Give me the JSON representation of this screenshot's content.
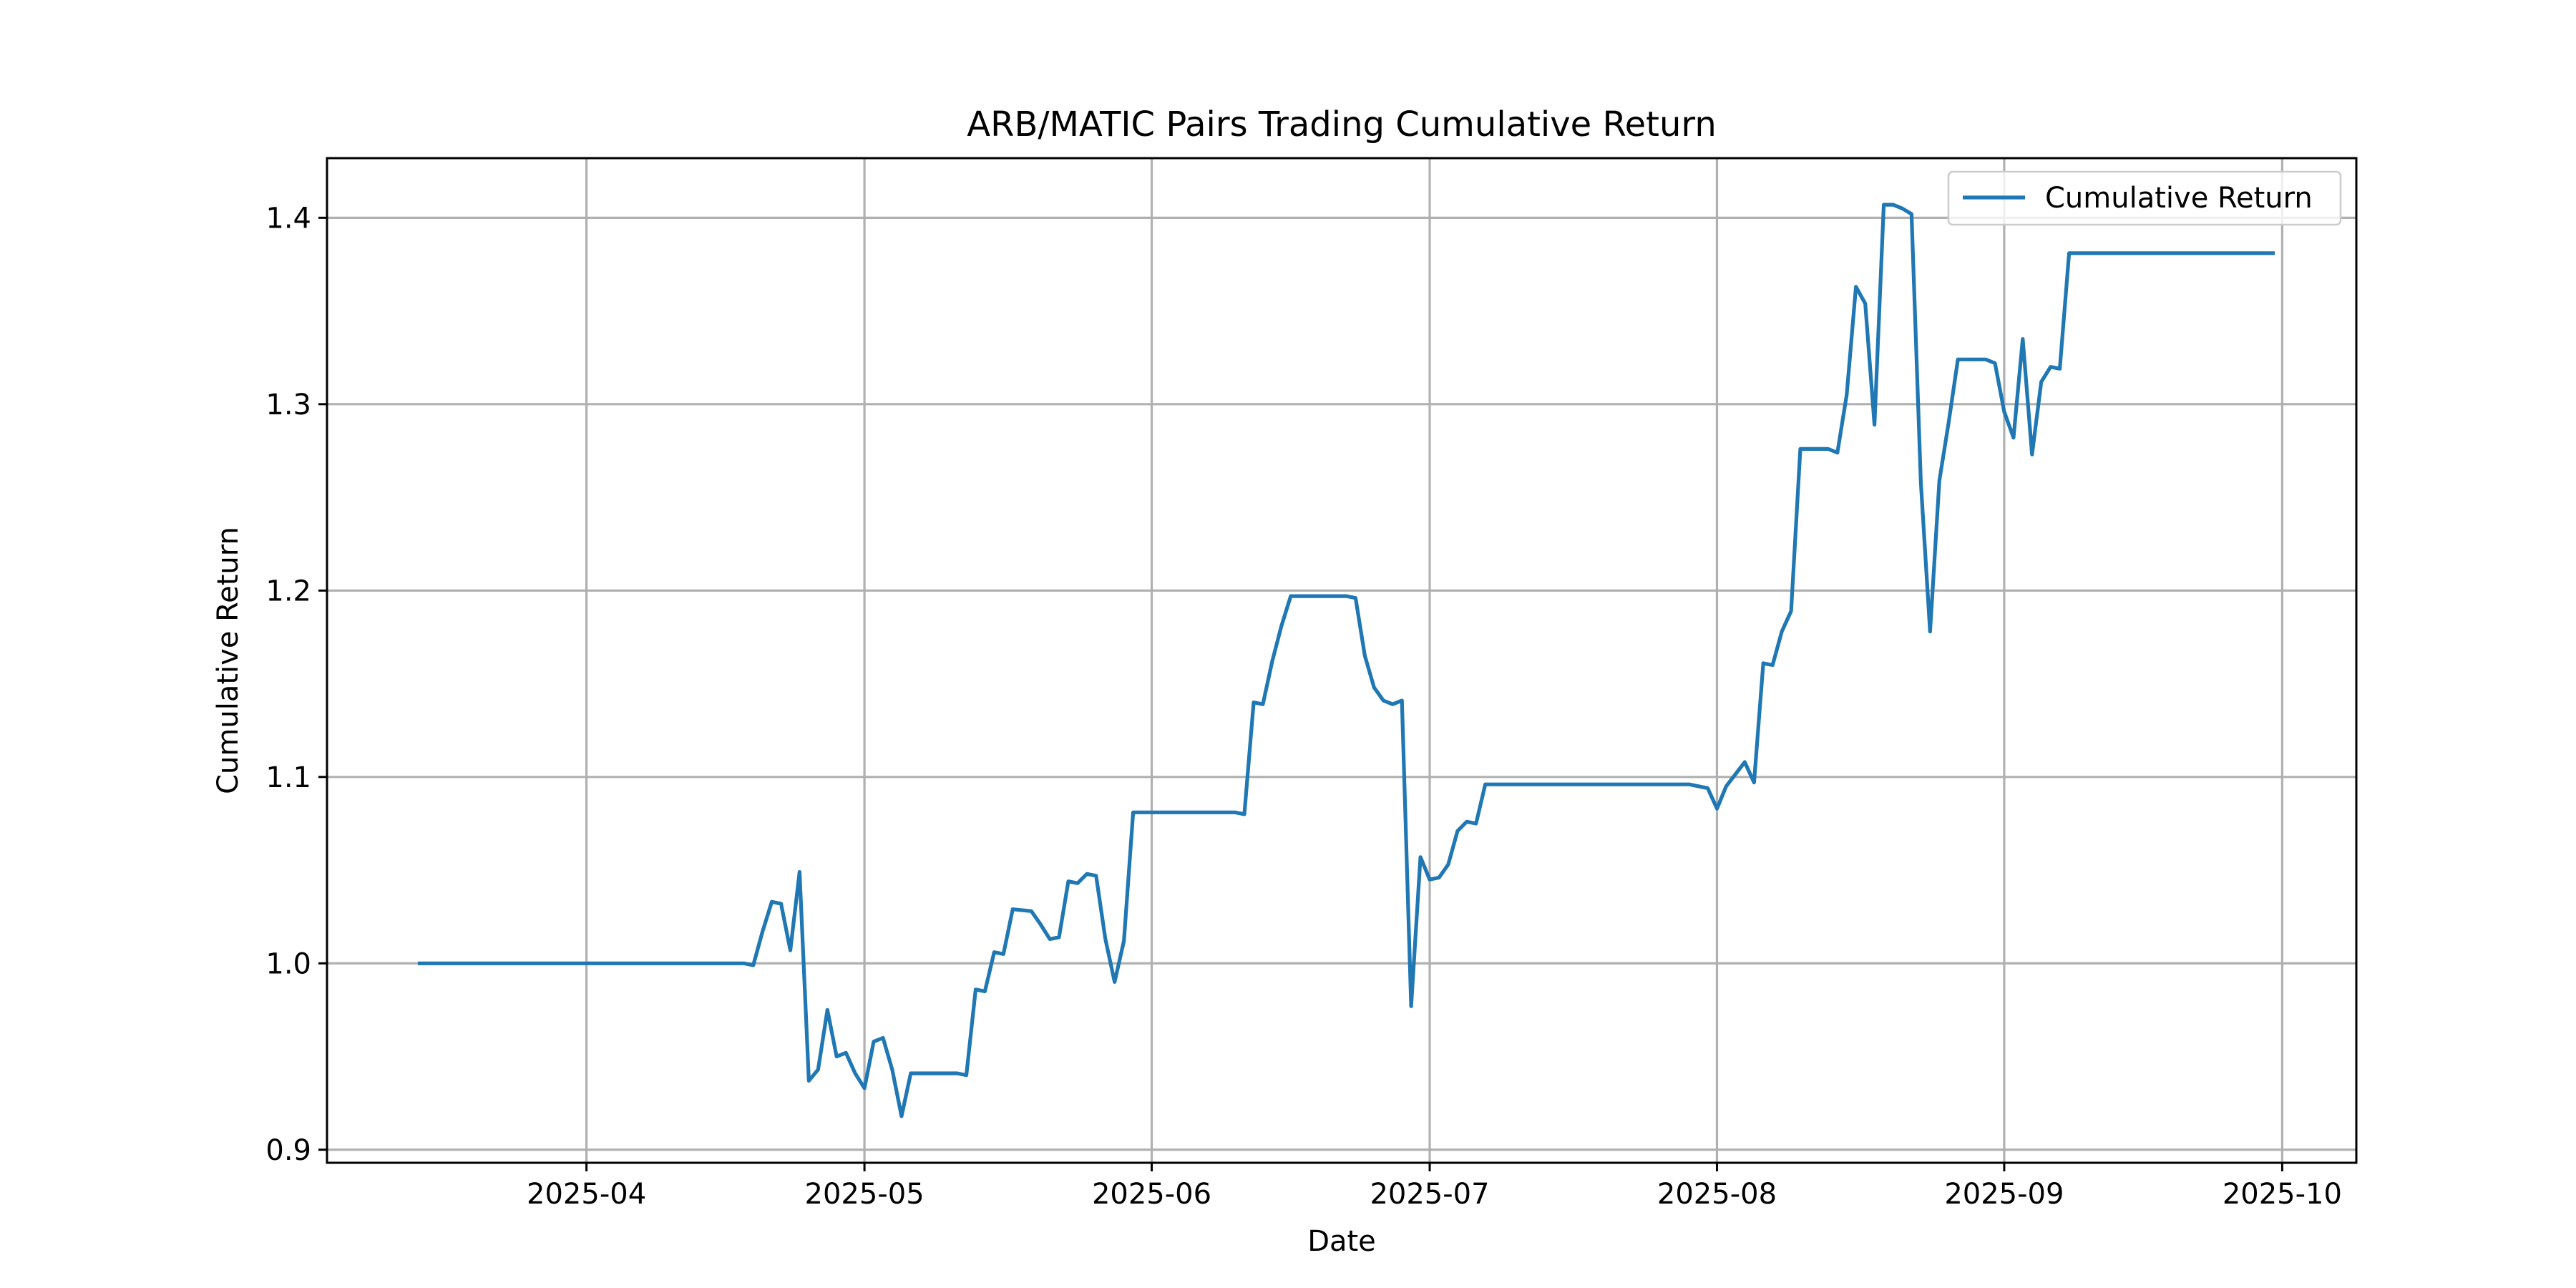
{
  "chart_data": {
    "type": "line",
    "title": "ARB/MATIC Pairs Trading Cumulative Return",
    "xlabel": "Date",
    "ylabel": "Cumulative Return",
    "x_is_date": true,
    "xlim": [
      "2025-03-04",
      "2025-10-09"
    ],
    "ylim": [
      0.893,
      1.432
    ],
    "x_ticks": [
      {
        "value": "2025-04-01",
        "label": "2025-04"
      },
      {
        "value": "2025-05-01",
        "label": "2025-05"
      },
      {
        "value": "2025-06-01",
        "label": "2025-06"
      },
      {
        "value": "2025-07-01",
        "label": "2025-07"
      },
      {
        "value": "2025-08-01",
        "label": "2025-08"
      },
      {
        "value": "2025-09-01",
        "label": "2025-09"
      },
      {
        "value": "2025-10-01",
        "label": "2025-10"
      }
    ],
    "y_ticks": [
      {
        "value": 0.9,
        "label": "0.9"
      },
      {
        "value": 1.0,
        "label": "1.0"
      },
      {
        "value": 1.1,
        "label": "1.1"
      },
      {
        "value": 1.2,
        "label": "1.2"
      },
      {
        "value": 1.3,
        "label": "1.3"
      },
      {
        "value": 1.4,
        "label": "1.4"
      }
    ],
    "grid": true,
    "legend": {
      "position": "upper right",
      "entries": [
        "Cumulative Return"
      ]
    },
    "series": [
      {
        "name": "Cumulative Return",
        "color": "#1f77b4",
        "x": [
          "2025-03-14",
          "2025-04-18",
          "2025-04-19",
          "2025-04-20",
          "2025-04-21",
          "2025-04-22",
          "2025-04-23",
          "2025-04-24",
          "2025-04-25",
          "2025-04-26",
          "2025-04-27",
          "2025-04-28",
          "2025-04-29",
          "2025-04-30",
          "2025-05-01",
          "2025-05-02",
          "2025-05-03",
          "2025-05-04",
          "2025-05-05",
          "2025-05-06",
          "2025-05-07",
          "2025-05-11",
          "2025-05-12",
          "2025-05-13",
          "2025-05-14",
          "2025-05-15",
          "2025-05-16",
          "2025-05-17",
          "2025-05-19",
          "2025-05-20",
          "2025-05-21",
          "2025-05-22",
          "2025-05-23",
          "2025-05-24",
          "2025-05-25",
          "2025-05-26",
          "2025-05-27",
          "2025-05-28",
          "2025-05-29",
          "2025-05-30",
          "2025-05-31",
          "2025-06-10",
          "2025-06-11",
          "2025-06-12",
          "2025-06-13",
          "2025-06-14",
          "2025-06-15",
          "2025-06-16",
          "2025-06-22",
          "2025-06-23",
          "2025-06-24",
          "2025-06-25",
          "2025-06-26",
          "2025-06-27",
          "2025-06-28",
          "2025-06-29",
          "2025-06-30",
          "2025-07-01",
          "2025-07-02",
          "2025-07-03",
          "2025-07-04",
          "2025-07-05",
          "2025-07-06",
          "2025-07-07",
          "2025-07-08",
          "2025-07-29",
          "2025-07-30",
          "2025-07-31",
          "2025-08-01",
          "2025-08-02",
          "2025-08-04",
          "2025-08-05",
          "2025-08-06",
          "2025-08-07",
          "2025-08-08",
          "2025-08-09",
          "2025-08-10",
          "2025-08-13",
          "2025-08-14",
          "2025-08-15",
          "2025-08-16",
          "2025-08-17",
          "2025-08-18",
          "2025-08-19",
          "2025-08-20",
          "2025-08-21",
          "2025-08-22",
          "2025-08-23",
          "2025-08-24",
          "2025-08-25",
          "2025-08-26",
          "2025-08-27",
          "2025-08-28",
          "2025-08-30",
          "2025-08-31",
          "2025-09-01",
          "2025-09-02",
          "2025-09-03",
          "2025-09-04",
          "2025-09-05",
          "2025-09-06",
          "2025-09-07",
          "2025-09-08",
          "2025-09-09",
          "2025-09-30"
        ],
        "y": [
          1.0,
          1.0,
          0.999,
          1.017,
          1.033,
          1.032,
          1.007,
          1.049,
          0.937,
          0.943,
          0.975,
          0.95,
          0.952,
          0.941,
          0.933,
          0.958,
          0.96,
          0.943,
          0.918,
          0.941,
          0.941,
          0.941,
          0.94,
          0.986,
          0.985,
          1.006,
          1.005,
          1.029,
          1.028,
          1.021,
          1.013,
          1.014,
          1.044,
          1.043,
          1.048,
          1.047,
          1.013,
          0.99,
          1.012,
          1.081,
          1.081,
          1.081,
          1.08,
          1.14,
          1.139,
          1.162,
          1.181,
          1.197,
          1.197,
          1.196,
          1.165,
          1.148,
          1.141,
          1.139,
          1.141,
          0.977,
          1.057,
          1.045,
          1.046,
          1.053,
          1.071,
          1.076,
          1.075,
          1.096,
          1.096,
          1.096,
          1.095,
          1.094,
          1.083,
          1.095,
          1.108,
          1.097,
          1.161,
          1.16,
          1.178,
          1.189,
          1.276,
          1.276,
          1.274,
          1.305,
          1.363,
          1.354,
          1.289,
          1.407,
          1.407,
          1.405,
          1.402,
          1.258,
          1.178,
          1.259,
          1.29,
          1.324,
          1.324,
          1.324,
          1.322,
          1.296,
          1.282,
          1.335,
          1.273,
          1.312,
          1.32,
          1.319,
          1.381,
          1.381,
          1.381
        ]
      }
    ]
  }
}
